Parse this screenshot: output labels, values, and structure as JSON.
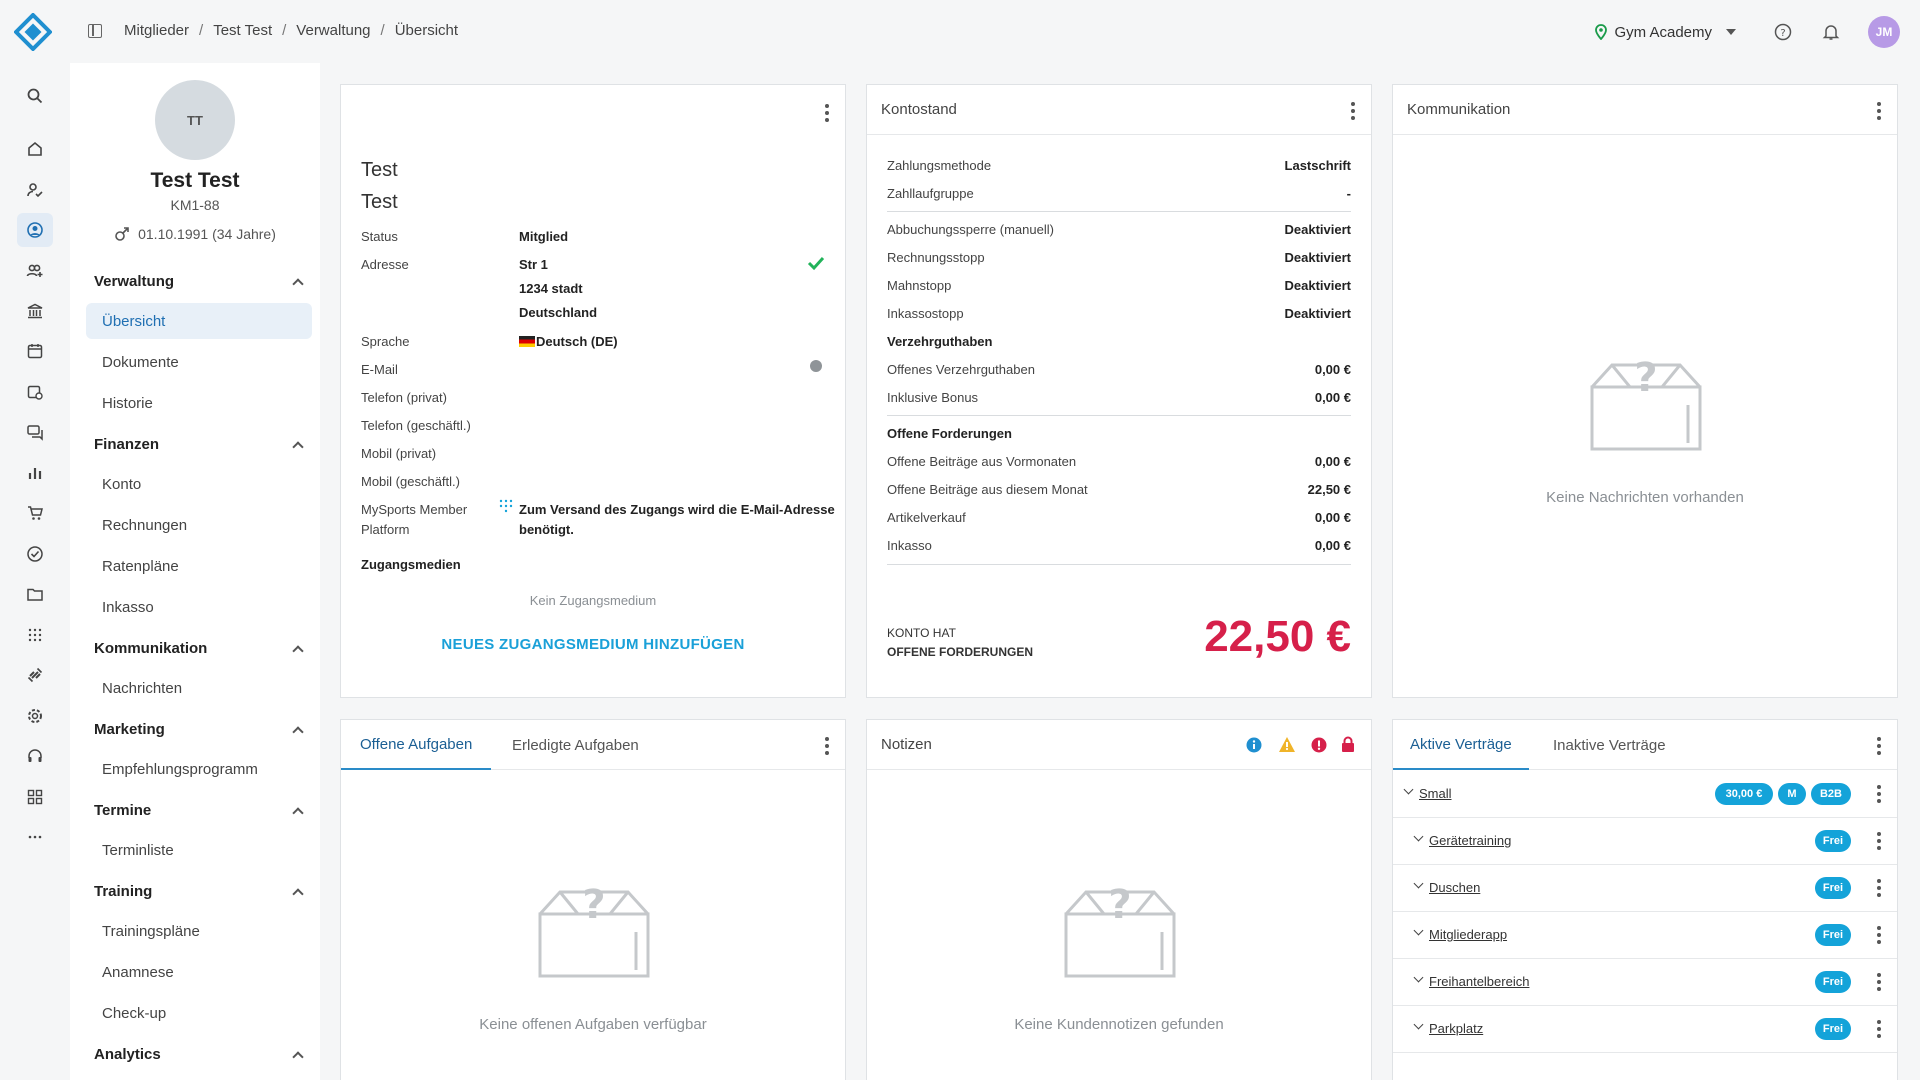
{
  "breadcrumb": [
    "Mitglieder",
    "Test Test",
    "Verwaltung",
    "Übersicht"
  ],
  "studio": {
    "name": "Gym Academy"
  },
  "user": {
    "initials": "JM"
  },
  "profile": {
    "initials": "TT",
    "name": "Test Test",
    "member_number": "KM1-88",
    "birth": "01.10.1991 (34 Jahre)"
  },
  "menu": {
    "verwaltung": {
      "title": "Verwaltung",
      "items": [
        "Übersicht",
        "Dokumente",
        "Historie"
      ]
    },
    "finanzen": {
      "title": "Finanzen",
      "items": [
        "Konto",
        "Rechnungen",
        "Ratenpläne",
        "Inkasso"
      ]
    },
    "kommunikation": {
      "title": "Kommunikation",
      "items": [
        "Nachrichten"
      ]
    },
    "marketing": {
      "title": "Marketing",
      "items": [
        "Empfehlungsprogramm"
      ]
    },
    "termine": {
      "title": "Termine",
      "items": [
        "Terminliste"
      ]
    },
    "training": {
      "title": "Training",
      "items": [
        "Trainingspläne",
        "Anamnese",
        "Check-up"
      ]
    },
    "analytics": {
      "title": "Analytics"
    }
  },
  "member_card": {
    "first_name": "Test",
    "last_name": "Test",
    "status_label": "Status",
    "status_value": "Mitglied",
    "address_label": "Adresse",
    "address_line1": "Str 1",
    "address_line2": "1234 stadt",
    "address_line3": "Deutschland",
    "language_label": "Sprache",
    "language_value": "Deutsch (DE)",
    "email_label": "E-Mail",
    "phone_private_label": "Telefon (privat)",
    "phone_business_label": "Telefon (geschäftl.)",
    "mobile_private_label": "Mobil (privat)",
    "mobile_business_label": "Mobil (geschäftl.)",
    "platform_label_1": "MySports Member",
    "platform_label_2": "Platform",
    "platform_value_1": "Zum Versand des Zugangs wird die E-Mail-Adresse",
    "platform_value_2": "benötigt.",
    "access_title": "Zugangsmedien",
    "no_access": "Kein Zugangsmedium",
    "add_access": "NEUES ZUGANGSMEDIUM HINZUFÜGEN"
  },
  "account": {
    "title": "Kontostand",
    "rows1": [
      {
        "label": "Zahlungsmethode",
        "value": "Lastschrift"
      },
      {
        "label": "Zahllaufgruppe",
        "value": "-"
      }
    ],
    "rows2": [
      {
        "label": "Abbuchungssperre (manuell)",
        "value": "Deaktiviert"
      },
      {
        "label": "Rechnungsstopp",
        "value": "Deaktiviert"
      },
      {
        "label": "Mahnstopp",
        "value": "Deaktiviert"
      },
      {
        "label": "Inkassostopp",
        "value": "Deaktiviert"
      }
    ],
    "credit_title": "Verzehrguthaben",
    "rows3": [
      {
        "label": "Offenes Verzehrguthaben",
        "value": "0,00 €"
      },
      {
        "label": "Inklusive Bonus",
        "value": "0,00 €"
      }
    ],
    "claims_title": "Offene Forderungen",
    "rows4": [
      {
        "label": "Offene Beiträge aus Vormonaten",
        "value": "0,00 €"
      },
      {
        "label": "Offene Beiträge aus diesem Monat",
        "value": "22,50 €"
      },
      {
        "label": "Artikelverkauf",
        "value": "0,00 €"
      },
      {
        "label": "Inkasso",
        "value": "0,00 €"
      }
    ],
    "summary_line1": "KONTO HAT",
    "summary_line2": "OFFENE FORDERUNGEN",
    "balance": "22,50 €",
    "balance_color": "#d6204a"
  },
  "communication": {
    "title": "Kommunikation",
    "empty": "Keine Nachrichten vorhanden"
  },
  "tasks": {
    "tab_open": "Offene Aufgaben",
    "tab_done": "Erledigte Aufgaben",
    "empty": "Keine offenen Aufgaben verfügbar"
  },
  "notes": {
    "title": "Notizen",
    "empty": "Keine Kundennotizen gefunden"
  },
  "contracts": {
    "tab_active": "Aktive Verträge",
    "tab_inactive": "Inaktive Verträge",
    "main": {
      "name": "Small",
      "price": "30,00 €",
      "badge_m": "M",
      "badge_b2b": "B2B"
    },
    "modules": [
      {
        "name": "Gerätetraining",
        "badge": "Frei"
      },
      {
        "name": "Duschen",
        "badge": "Frei"
      },
      {
        "name": "Mitgliederapp",
        "badge": "Frei"
      },
      {
        "name": "Freihantelbereich",
        "badge": "Frei"
      },
      {
        "name": "Parkplatz",
        "badge": "Frei"
      }
    ]
  },
  "colors": {
    "accent": "#14a3d9",
    "success": "#22b35a",
    "warning": "#f0b429",
    "danger": "#d6204a"
  }
}
